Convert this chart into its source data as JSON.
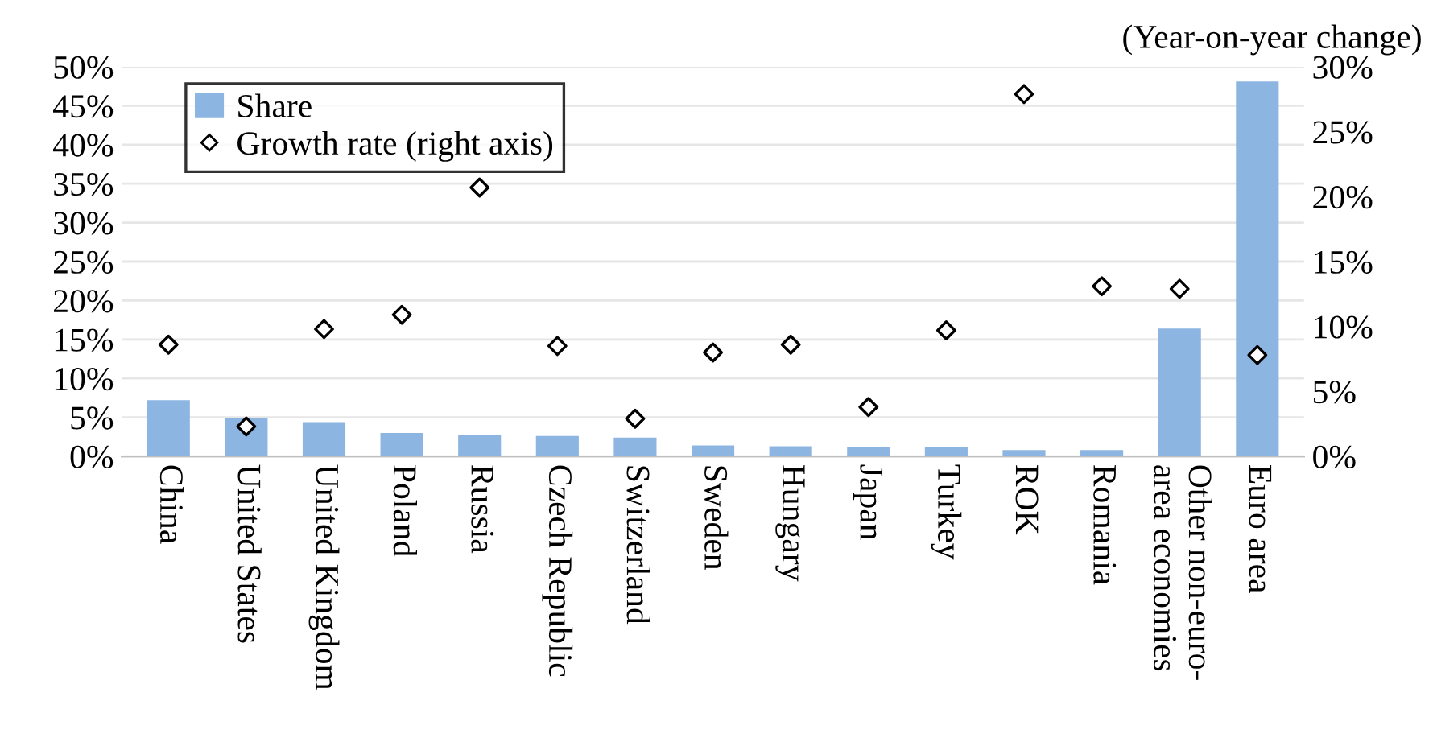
{
  "chart_data": {
    "type": "bar",
    "categories": [
      "China",
      "United States",
      "United Kingdom",
      "Poland",
      "Russia",
      "Czech Republic",
      "Switzerland",
      "Sweden",
      "Hungary",
      "Japan",
      "Turkey",
      "ROK",
      "Romania",
      "Other non-euro-\narea economies",
      "Euro area"
    ],
    "series": [
      {
        "name": "Share",
        "color": "#8db5e2",
        "values": [
          7.2,
          4.9,
          4.4,
          3.0,
          2.8,
          2.6,
          2.4,
          1.4,
          1.3,
          1.2,
          1.2,
          0.8,
          0.8,
          16.4,
          48.1
        ]
      },
      {
        "name": "Growth rate (right axis)",
        "type": "scatter",
        "axis": "y2",
        "marker": "diamond",
        "color": "#000000",
        "values": [
          8.6,
          2.3,
          9.8,
          10.9,
          20.7,
          8.5,
          2.9,
          8.0,
          8.6,
          3.8,
          9.7,
          27.9,
          13.1,
          12.9,
          7.8
        ]
      }
    ],
    "y2label": "(Year-on-year change)",
    "ylim": [
      0,
      50
    ],
    "yticks": [
      {
        "value": 0,
        "label": "0%"
      },
      {
        "value": 5,
        "label": "5%"
      },
      {
        "value": 10,
        "label": "10%"
      },
      {
        "value": 15,
        "label": "15%"
      },
      {
        "value": 20,
        "label": "20%"
      },
      {
        "value": 25,
        "label": "25%"
      },
      {
        "value": 30,
        "label": "30%"
      },
      {
        "value": 35,
        "label": "35%"
      },
      {
        "value": 40,
        "label": "40%"
      },
      {
        "value": 45,
        "label": "45%"
      },
      {
        "value": 50,
        "label": "50%"
      }
    ],
    "y2lim": [
      0,
      30
    ],
    "y2ticks": [
      {
        "value": 0,
        "label": "0%"
      },
      {
        "value": 5,
        "label": "5%"
      },
      {
        "value": 10,
        "label": "10%"
      },
      {
        "value": 15,
        "label": "15%"
      },
      {
        "value": 20,
        "label": "20%"
      },
      {
        "value": 25,
        "label": "25%"
      },
      {
        "value": 30,
        "label": "30%"
      }
    ],
    "grid": "y",
    "legend": "top left"
  }
}
